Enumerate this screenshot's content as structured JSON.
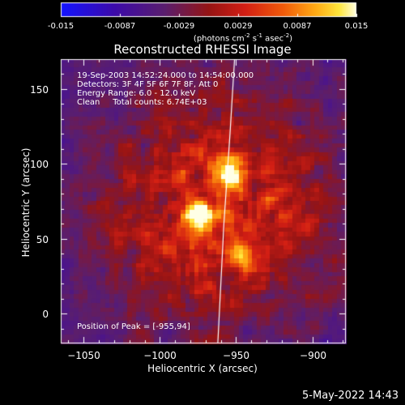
{
  "colorbar": {
    "ticks": [
      "-0.015",
      "-0.0087",
      "-0.0029",
      "0.0029",
      "0.0087",
      "0.015"
    ],
    "label_prefix": "(photons cm",
    "label_exp1": "-2",
    "label_mid": " s",
    "label_exp2": "-1",
    "label_mid2": " asec",
    "label_exp3": "-2",
    "label_suffix": ")"
  },
  "chart_data": {
    "type": "heatmap",
    "title": "Reconstructed RHESSI Image",
    "xlabel": "Heliocentric X (arcsec)",
    "ylabel": "Heliocentric Y (arcsec)",
    "xlim": [
      -1065,
      -878
    ],
    "ylim": [
      -20,
      170
    ],
    "x_ticks": [
      -1050,
      -1000,
      -950,
      -900
    ],
    "y_ticks": [
      0,
      50,
      100,
      150
    ],
    "colorbar_range": [
      -0.015,
      0.015
    ],
    "peaks": [
      {
        "x": -975,
        "y": 66,
        "relative": 1.0
      },
      {
        "x": -955,
        "y": 94,
        "relative": 1.0
      },
      {
        "x": -945,
        "y": 38,
        "relative": 0.55
      }
    ],
    "limb_curve": [
      [
        -951,
        170
      ],
      [
        -954,
        120
      ],
      [
        -958,
        60
      ],
      [
        -961,
        0
      ],
      [
        -962,
        -20
      ]
    ],
    "annotations": [
      "19-Sep-2003 14:52:24.000 to 14:54:00.000",
      "Detectors: 3F 4F 5F 6F 7F 8F, Att 0",
      "Energy Range: 6.0 - 12.0 keV",
      "Clean     Total counts: 6.74E+03",
      "Position of Peak = [-955,94]"
    ],
    "footer_date": "5-May-2022 14:43"
  }
}
